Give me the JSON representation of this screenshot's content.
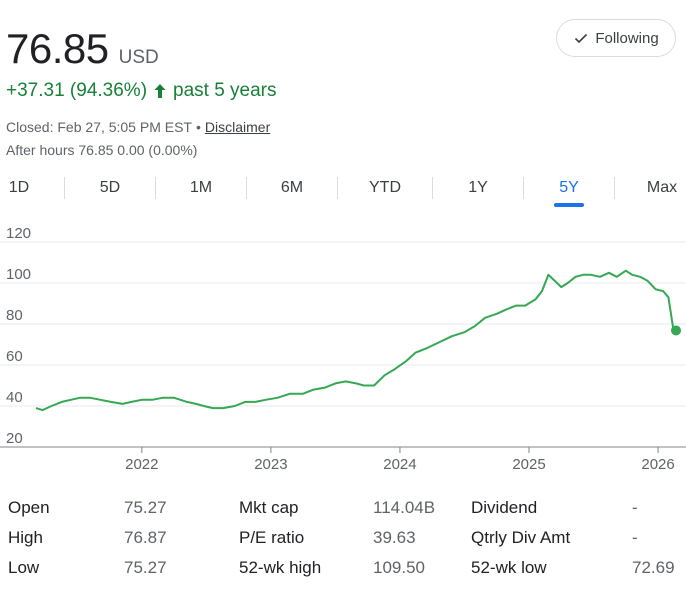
{
  "quote": {
    "price": "76.85",
    "currency": "USD",
    "change_text": "+37.31 (94.36%)",
    "period_text": "past 5 years",
    "closed_text": "Closed: Feb 27, 5:05 PM EST",
    "disclaimer": "Disclaimer",
    "after_hours": "After hours 76.85 0.00 (0.00%)",
    "follow_label": "Following"
  },
  "tabs": [
    "1D",
    "5D",
    "1M",
    "6M",
    "YTD",
    "1Y",
    "5Y",
    "Max"
  ],
  "active_tab": "5Y",
  "colors": {
    "line": "#34a853",
    "accent": "#1a73e8",
    "positive": "#188038"
  },
  "chart_data": {
    "type": "area",
    "yticks": [
      "20",
      "40",
      "60",
      "80",
      "100",
      "120"
    ],
    "xticks": [
      "2022",
      "2023",
      "2024",
      "2025",
      "2026"
    ],
    "ylim": [
      20,
      120
    ],
    "xlim": [
      2021.18,
      2026.17
    ],
    "grid": true,
    "x": [
      2021.18,
      2021.23,
      2021.3,
      2021.38,
      2021.45,
      2021.52,
      2021.6,
      2021.68,
      2021.76,
      2021.85,
      2021.92,
      2022.0,
      2022.08,
      2022.16,
      2022.25,
      2022.35,
      2022.42,
      2022.48,
      2022.55,
      2022.63,
      2022.72,
      2022.8,
      2022.88,
      2022.96,
      2023.05,
      2023.15,
      2023.25,
      2023.33,
      2023.42,
      2023.5,
      2023.58,
      2023.66,
      2023.72,
      2023.8,
      2023.88,
      2023.96,
      2024.05,
      2024.12,
      2024.2,
      2024.3,
      2024.4,
      2024.5,
      2024.58,
      2024.66,
      2024.75,
      2024.82,
      2024.9,
      2024.97,
      2025.05,
      2025.1,
      2025.15,
      2025.2,
      2025.25,
      2025.3,
      2025.36,
      2025.42,
      2025.48,
      2025.55,
      2025.62,
      2025.68,
      2025.75,
      2025.8,
      2025.86,
      2025.92,
      2025.98,
      2026.04,
      2026.08,
      2026.12,
      2026.17
    ],
    "values": [
      39,
      38,
      40,
      42,
      43,
      44,
      44,
      43,
      42,
      41,
      42,
      43,
      43,
      44,
      44,
      42,
      41,
      40,
      39,
      39,
      40,
      42,
      42,
      43,
      44,
      46,
      46,
      48,
      49,
      51,
      52,
      51,
      50,
      50,
      55,
      58,
      62,
      66,
      68,
      71,
      74,
      76,
      79,
      83,
      85,
      87,
      89,
      89,
      92,
      96,
      104,
      101,
      98,
      100,
      103,
      104,
      104,
      103,
      105,
      103,
      106,
      104,
      103,
      101,
      97,
      96,
      93,
      77,
      77
    ],
    "last_value": 76.85
  },
  "stats": [
    [
      {
        "label": "Open",
        "value": "75.27"
      },
      {
        "label": "Mkt cap",
        "value": "114.04B"
      },
      {
        "label": "Dividend",
        "value": "-"
      }
    ],
    [
      {
        "label": "High",
        "value": "76.87"
      },
      {
        "label": "P/E ratio",
        "value": "39.63"
      },
      {
        "label": "Qtrly Div Amt",
        "value": "-"
      }
    ],
    [
      {
        "label": "Low",
        "value": "75.27"
      },
      {
        "label": "52-wk high",
        "value": "109.50"
      },
      {
        "label": "52-wk low",
        "value": "72.69"
      }
    ]
  ]
}
